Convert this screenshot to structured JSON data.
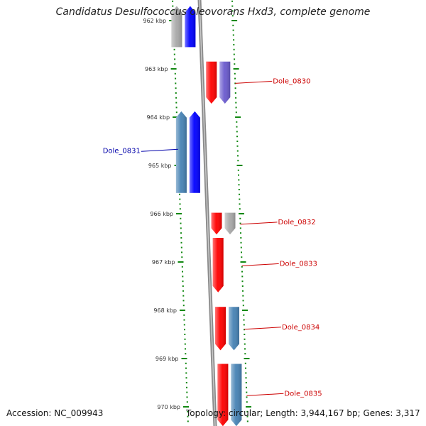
{
  "title": "Candidatus Desulfococcus oleovorans Hxd3, complete genome",
  "accession": "Accession: NC_009943",
  "summary": "Topology: circular; Length: 3,944,167 bp; Genes: 3,317",
  "colors": {
    "red": "#ff0000",
    "blue": "#0000ff",
    "steel": "#4682b4",
    "grey": "#a8a8a8",
    "purple": "#6a5acd",
    "tick": "#118811",
    "backbone": "#8a8a8a",
    "label_red": "#cc0000",
    "label_blue": "#0000aa"
  },
  "ticks": [
    {
      "label": "962 kbp",
      "kbp": 962
    },
    {
      "label": "963 kbp",
      "kbp": 963
    },
    {
      "label": "964 kbp",
      "kbp": 964
    },
    {
      "label": "965 kbp",
      "kbp": 965
    },
    {
      "label": "966 kbp",
      "kbp": 966
    },
    {
      "label": "967 kbp",
      "kbp": 967
    },
    {
      "label": "968 kbp",
      "kbp": 968
    },
    {
      "label": "969 kbp",
      "kbp": 969
    },
    {
      "label": "970 kbp",
      "kbp": 970
    }
  ],
  "genes": [
    {
      "name": "Dole_0830",
      "strand": "forward",
      "color": "red",
      "start_kbp": 962.85,
      "end_kbp": 963.72,
      "labeled": true,
      "label_side": "right"
    },
    {
      "name": "",
      "strand": "forward",
      "color": "purple",
      "start_kbp": 962.85,
      "end_kbp": 963.72,
      "labeled": false,
      "track": 2
    },
    {
      "name": "Dole_0831",
      "strand": "reverse",
      "color": "steel",
      "start_kbp": 963.88,
      "end_kbp": 965.57,
      "labeled": true,
      "label_side": "left"
    },
    {
      "name": "",
      "strand": "reverse",
      "color": "blue",
      "start_kbp": 963.88,
      "end_kbp": 965.57,
      "labeled": false,
      "track": 2
    },
    {
      "name": "",
      "strand": "reverse",
      "color": "grey",
      "start_kbp": 961.7,
      "end_kbp": 962.55,
      "labeled": false,
      "track": 1
    },
    {
      "name": "",
      "strand": "reverse",
      "color": "blue",
      "start_kbp": 961.7,
      "end_kbp": 962.55,
      "labeled": false,
      "track": 2
    },
    {
      "name": "Dole_0832",
      "strand": "forward",
      "color": "red",
      "start_kbp": 965.98,
      "end_kbp": 966.43,
      "labeled": true,
      "label_side": "right"
    },
    {
      "name": "",
      "strand": "forward",
      "color": "grey",
      "start_kbp": 965.98,
      "end_kbp": 966.43,
      "labeled": false,
      "track": 2
    },
    {
      "name": "Dole_0833",
      "strand": "forward",
      "color": "red",
      "start_kbp": 966.5,
      "end_kbp": 967.63,
      "labeled": true,
      "label_side": "right"
    },
    {
      "name": "Dole_0834",
      "strand": "forward",
      "color": "red",
      "start_kbp": 967.93,
      "end_kbp": 968.83,
      "labeled": true,
      "label_side": "right"
    },
    {
      "name": "",
      "strand": "forward",
      "color": "steel",
      "start_kbp": 967.93,
      "end_kbp": 968.83,
      "labeled": false,
      "track": 2
    },
    {
      "name": "Dole_0835",
      "strand": "forward",
      "color": "red",
      "start_kbp": 969.11,
      "end_kbp": 970.4,
      "labeled": true,
      "label_side": "right"
    },
    {
      "name": "",
      "strand": "forward",
      "color": "steel",
      "start_kbp": 969.11,
      "end_kbp": 970.4,
      "labeled": false,
      "track": 2
    }
  ]
}
